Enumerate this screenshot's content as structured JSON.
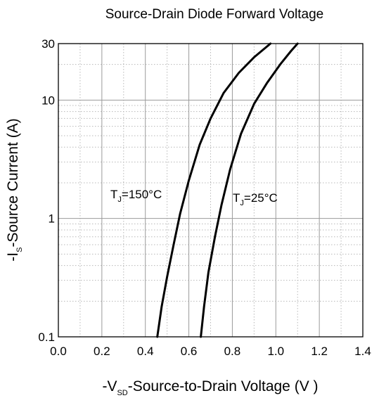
{
  "chart_data": {
    "type": "line",
    "title": "Source-Drain Diode Forward Voltage",
    "xlabel": {
      "pre": "-V",
      "sub": "SD",
      "post": "-Source-to-Drain Voltage (V )"
    },
    "ylabel": {
      "pre": "-I",
      "sub": "S",
      "post": "-Source Current (A)"
    },
    "xlim": [
      0.0,
      1.4
    ],
    "ylim": [
      0.1,
      30
    ],
    "y_scale": "log",
    "grid": true,
    "x_ticks": [
      "0.0",
      "0.2",
      "0.4",
      "0.6",
      "0.8",
      "1.0",
      "1.2",
      "1.4"
    ],
    "y_ticks": [
      "0.1",
      "1",
      "10",
      "30"
    ],
    "series": [
      {
        "label": {
          "pre": "T",
          "sub": "J",
          "post": "=150°C"
        },
        "x": [
          0.455,
          0.475,
          0.5,
          0.53,
          0.56,
          0.6,
          0.65,
          0.7,
          0.76,
          0.83,
          0.9,
          0.975
        ],
        "y": [
          0.1,
          0.18,
          0.32,
          0.6,
          1.1,
          2.1,
          4.2,
          7.0,
          11.5,
          17.0,
          23.0,
          30.0
        ]
      },
      {
        "label": {
          "pre": "T",
          "sub": "J",
          "post": "=25°C"
        },
        "x": [
          0.655,
          0.67,
          0.69,
          0.72,
          0.75,
          0.79,
          0.84,
          0.9,
          0.96,
          1.02,
          1.07,
          1.1
        ],
        "y": [
          0.1,
          0.18,
          0.35,
          0.7,
          1.3,
          2.6,
          5.2,
          9.3,
          14.0,
          20.0,
          26.0,
          30.0
        ]
      }
    ]
  }
}
